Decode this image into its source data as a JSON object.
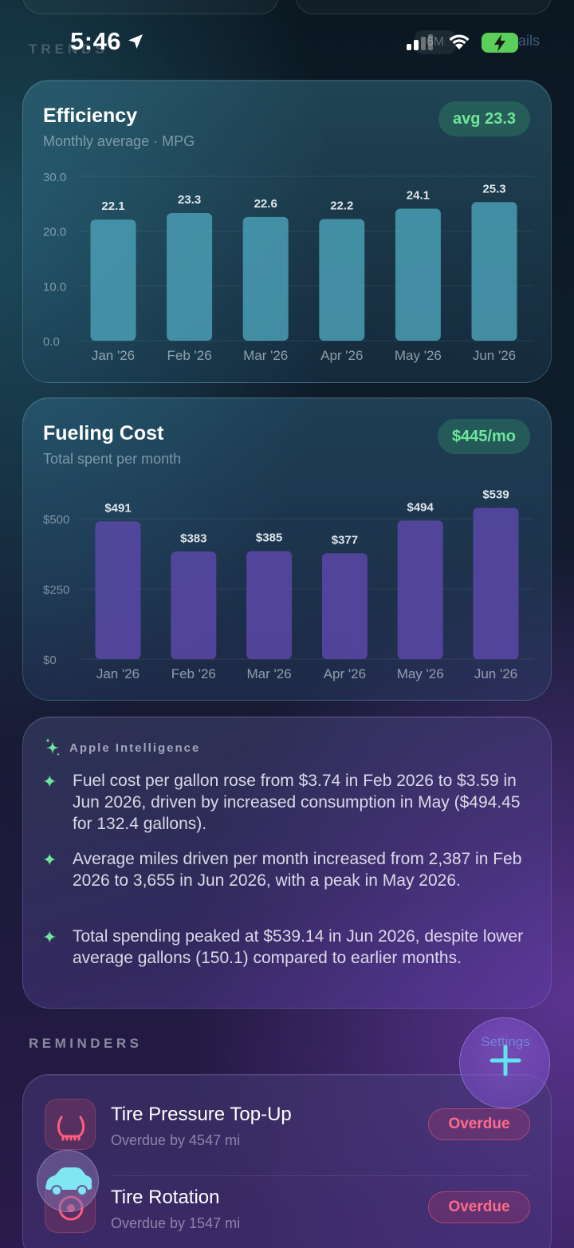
{
  "status_bar": {
    "time": "5:46",
    "faded_section": "TRENDS",
    "faded_range": "6M",
    "faded_link": "Details"
  },
  "colors": {
    "accent_green": "#6ee69a",
    "efficiency_bar": "#4a9eb4",
    "cost_bar": "#5a48a8",
    "overdue_red": "#ff6b8a"
  },
  "efficiency": {
    "title": "Efficiency",
    "subtitle": "Monthly average · MPG",
    "badge": "avg 23.3"
  },
  "cost": {
    "title": "Fueling Cost",
    "subtitle": "Total spent per month",
    "badge": "$445/mo"
  },
  "chart_data": [
    {
      "type": "bar",
      "title": "Efficiency",
      "subtitle": "Monthly average · MPG",
      "categories": [
        "Jan '26",
        "Feb '26",
        "Mar '26",
        "Apr '26",
        "May '26",
        "Jun '26"
      ],
      "values": [
        22.1,
        23.3,
        22.6,
        22.2,
        24.1,
        25.3
      ],
      "value_labels": [
        "22.1",
        "23.3",
        "22.6",
        "22.2",
        "24.1",
        "25.3"
      ],
      "ylim": [
        0,
        30
      ],
      "yticks": [
        0,
        10,
        20,
        30
      ],
      "ytick_labels": [
        "0.0",
        "10.0",
        "20.0",
        "30.0"
      ],
      "grid": true
    },
    {
      "type": "bar",
      "title": "Fueling Cost",
      "subtitle": "Total spent per month",
      "categories": [
        "Jan '26",
        "Feb '26",
        "Mar '26",
        "Apr '26",
        "May '26",
        "Jun '26"
      ],
      "values": [
        491,
        383,
        385,
        377,
        494,
        539
      ],
      "value_labels": [
        "$491",
        "$383",
        "$385",
        "$377",
        "$494",
        "$539"
      ],
      "ylim": [
        0,
        600
      ],
      "yticks": [
        0,
        250,
        500
      ],
      "ytick_labels": [
        "$0",
        "$250",
        "$500"
      ],
      "grid": true
    }
  ],
  "ai": {
    "label": "Apple Intelligence",
    "icon": "sparkles-icon",
    "insights": [
      "Fuel cost per gallon rose from $3.74 in Feb 2026 to $3.59 in Jun 2026, driven by increased consumption in May ($494.45 for 132.4 gallons).",
      "Average miles driven per month increased from 2,387 in Feb 2026 to 3,655 in Jun 2026, with a peak in May 2026.",
      "Total spending peaked at $539.14 in Jun 2026, despite lower average gallons (150.1) compared to earlier months."
    ]
  },
  "reminders": {
    "label": "REMINDERS",
    "items": [
      {
        "title": "Tire Pressure Top-Up",
        "subtitle": "Overdue by 4547 mi",
        "status": "Overdue",
        "icon": "tire-pressure-icon"
      },
      {
        "title": "Tire Rotation",
        "subtitle": "Overdue by 1547 mi",
        "status": "Overdue",
        "icon": "tire-rotation-icon"
      }
    ]
  },
  "fab": {
    "faded_label": "Settings",
    "icon": "plus-icon"
  },
  "car_bubble": {
    "icon": "car-icon"
  }
}
